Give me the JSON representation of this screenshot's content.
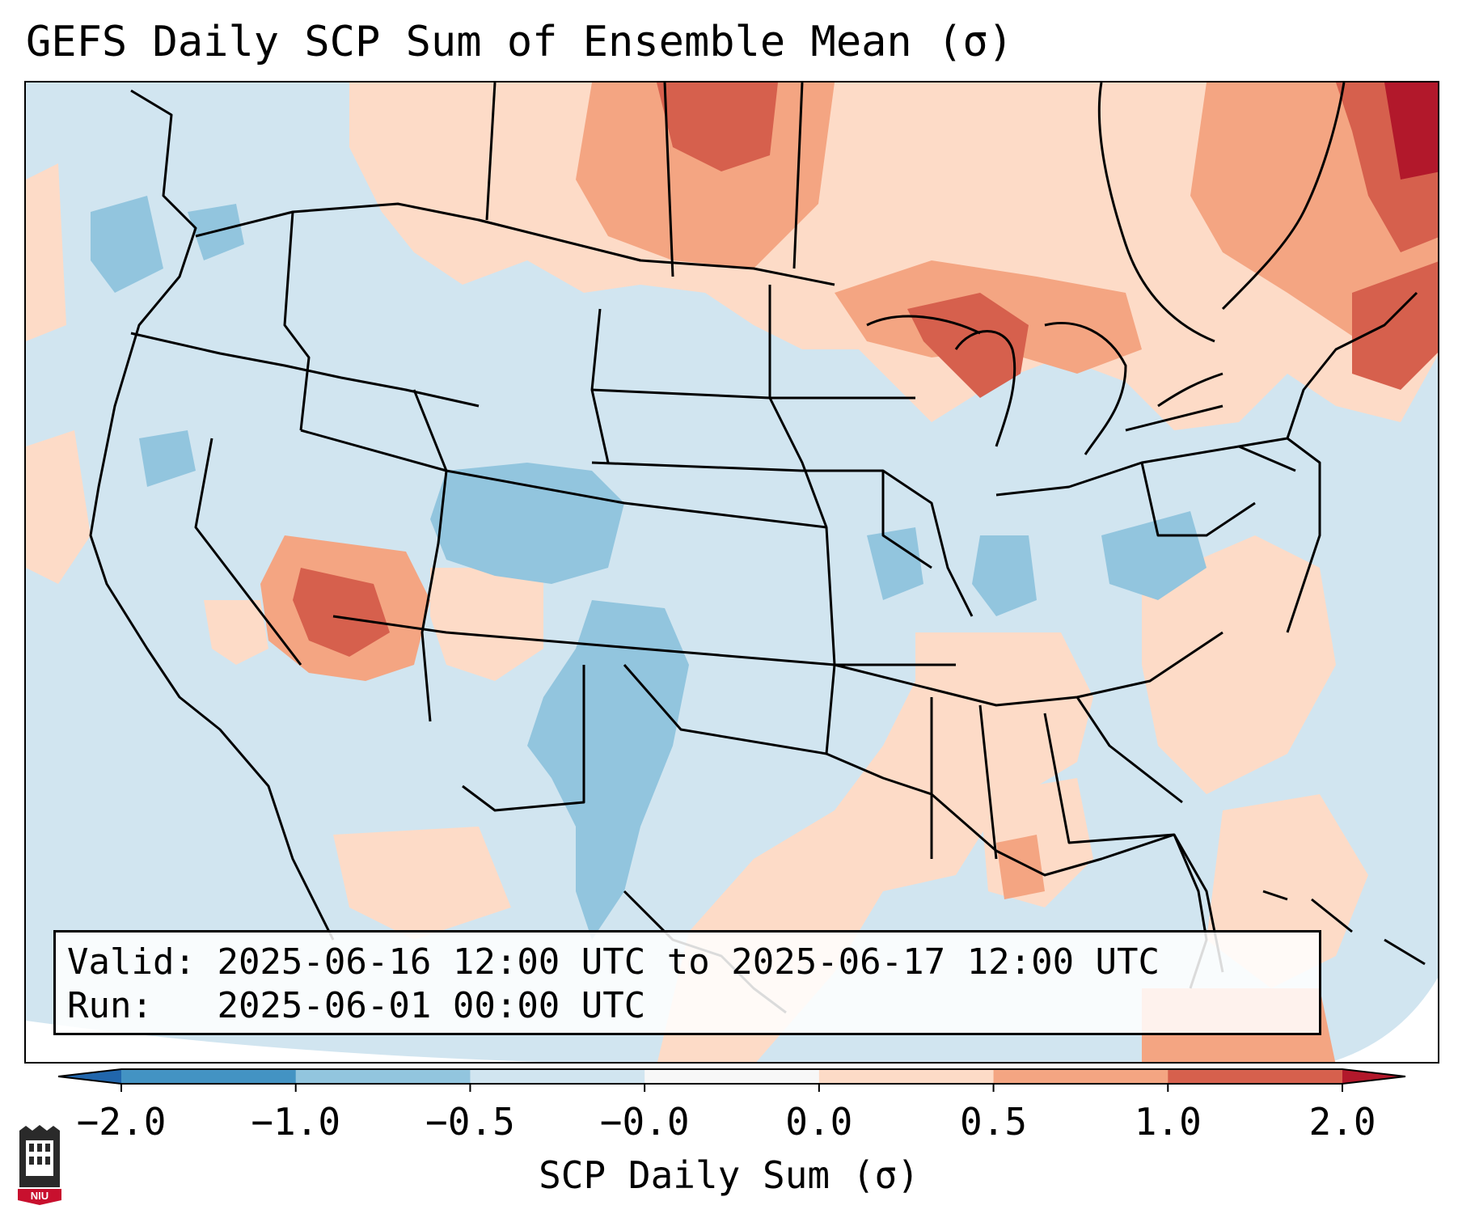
{
  "title": "GEFS Daily SCP Sum of Ensemble Mean (σ)",
  "info": {
    "valid_label": "Valid:",
    "valid_value": "2025-06-16 12:00 UTC to 2025-06-17 12:00 UTC",
    "run_label": "Run:",
    "run_value": "2025-06-01 00:00 UTC"
  },
  "colorbar": {
    "label": "SCP Daily Sum (σ)",
    "ticks": [
      "−2.0",
      "−1.0",
      "−0.5",
      "−0.0",
      "0.0",
      "0.5",
      "1.0",
      "2.0"
    ],
    "bins": [
      {
        "range": "< -2.0",
        "color": "#2166ac"
      },
      {
        "range": "-2.0 to -1.0",
        "color": "#4393c3"
      },
      {
        "range": "-1.0 to -0.5",
        "color": "#92c5de"
      },
      {
        "range": "-0.5 to -0.0",
        "color": "#d1e5f0"
      },
      {
        "range": "-0.0 to 0.0",
        "color": "#f7f7f7"
      },
      {
        "range": "0.0 to 0.5",
        "color": "#fddbc7"
      },
      {
        "range": "0.5 to 1.0",
        "color": "#f4a582"
      },
      {
        "range": "1.0 to 2.0",
        "color": "#d6604d"
      },
      {
        "range": "> 2.0",
        "color": "#b2182b"
      }
    ]
  },
  "map": {
    "region": "Continental United States",
    "background_color": "#d1e5f0",
    "boundary_color": "#000000",
    "anomaly_areas": [
      {
        "name": "upper-midwest-great-lakes",
        "bin": "1.0 to 2.0"
      },
      {
        "name": "northern-plains-canada",
        "bin": "0.5 to 1.0"
      },
      {
        "name": "southwest-arizona",
        "bin": "0.5 to 1.0"
      },
      {
        "name": "new-england-canada",
        "bin": "1.0 to 2.0"
      },
      {
        "name": "colorado",
        "bin": "-1.0 to -0.5"
      },
      {
        "name": "texas",
        "bin": "-1.0 to -0.5"
      },
      {
        "name": "southeast-gulf",
        "bin": "0.0 to 0.5"
      }
    ]
  },
  "logo": {
    "text": "NIU",
    "color": "#c8102e"
  }
}
